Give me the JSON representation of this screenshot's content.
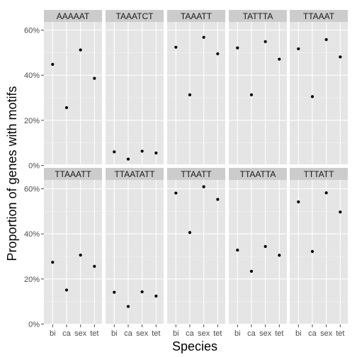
{
  "chart_data": {
    "type": "scatter",
    "xlabel": "Species",
    "ylabel": "Proportion of genes with motifs",
    "categories": [
      "bi",
      "ca",
      "sex",
      "tet"
    ],
    "ylim": [
      0,
      0.6
    ],
    "yticks": [
      0,
      0.2,
      0.4,
      0.6
    ],
    "ytick_labels": [
      "0%",
      "20%",
      "40%",
      "60%"
    ],
    "grid": true,
    "facets": [
      {
        "name": "AAAAAT",
        "values": [
          0.448,
          0.256,
          0.512,
          0.386
        ]
      },
      {
        "name": "TAAATCT",
        "values": [
          0.06,
          0.028,
          0.063,
          0.055
        ]
      },
      {
        "name": "TAAATT",
        "values": [
          0.524,
          0.313,
          0.568,
          0.495
        ]
      },
      {
        "name": "TATTTA",
        "values": [
          0.521,
          0.313,
          0.549,
          0.471
        ]
      },
      {
        "name": "TTAAAT",
        "values": [
          0.517,
          0.305,
          0.558,
          0.481
        ]
      },
      {
        "name": "TTAAATT",
        "values": [
          0.274,
          0.151,
          0.306,
          0.256
        ]
      },
      {
        "name": "TTAATATT",
        "values": [
          0.141,
          0.078,
          0.143,
          0.124
        ]
      },
      {
        "name": "TTAATT",
        "values": [
          0.581,
          0.406,
          0.609,
          0.553
        ]
      },
      {
        "name": "TTAATTA",
        "values": [
          0.328,
          0.234,
          0.344,
          0.305
        ]
      },
      {
        "name": "TTTATT",
        "values": [
          0.542,
          0.322,
          0.582,
          0.497
        ]
      }
    ]
  },
  "colors": {
    "panel_bg": "#e5e5e5",
    "strip_bg": "#cccccc",
    "grid_major": "#ffffff",
    "grid_minor": "#f2f2f2",
    "point": "#000000"
  }
}
